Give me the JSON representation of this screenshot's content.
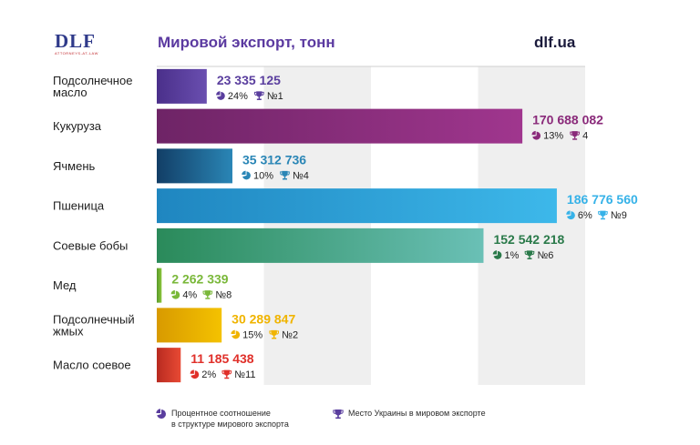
{
  "header": {
    "logo_text": "DLF",
    "logo_sub": "ATTORNEYS-AT-LAW",
    "title": "Мировой экспорт, тонн",
    "site": "dlf.ua"
  },
  "legend": {
    "share_label": "Процентное соотношение\nв структуре мирового экспорта",
    "rank_label": "Место Украины в мировом экспорте"
  },
  "chart_data": {
    "type": "bar",
    "orientation": "horizontal",
    "title": "Мировой экспорт, тонн",
    "xlim": [
      0,
      200000000
    ],
    "grid": "alternating-bands",
    "categories": [
      "Подсолнечное масло",
      "Кукуруза",
      "Ячмень",
      "Пшеница",
      "Соевые бобы",
      "Мед",
      "Подсолнечный жмых",
      "Масло соевое"
    ],
    "category_lines": [
      [
        "Подсолнечное",
        "масло"
      ],
      [
        "Кукуруза"
      ],
      [
        "Ячмень"
      ],
      [
        "Пшеница"
      ],
      [
        "Соевые бобы"
      ],
      [
        "Мед"
      ],
      [
        "Подсолнечный",
        "жмых"
      ],
      [
        "Масло соевое"
      ]
    ],
    "values": [
      23335125,
      170688082,
      35312736,
      186776560,
      152542218,
      2262339,
      30289847,
      11185438
    ],
    "value_labels": [
      "23 335 125",
      "170 688 082",
      "35 312 736",
      "186 776 560",
      "152 542 218",
      "2 262 339",
      "30 289 847",
      "11 185 438"
    ],
    "share_labels": [
      "24%",
      "13%",
      "10%",
      "6%",
      "1%",
      "4%",
      "15%",
      "2%"
    ],
    "rank_labels": [
      "№1",
      "4",
      "№4",
      "№9",
      "№6",
      "№8",
      "№2",
      "№11"
    ],
    "colors": [
      {
        "start": "#4a2f8a",
        "end": "#6a4fb0",
        "text": "#5a3e9e"
      },
      {
        "start": "#6e2466",
        "end": "#a0368e",
        "text": "#8a2a7a"
      },
      {
        "start": "#123e66",
        "end": "#2a86b6",
        "text": "#2a86b6"
      },
      {
        "start": "#1f86c0",
        "end": "#3db8ea",
        "text": "#36b2e8"
      },
      {
        "start": "#2a8a5a",
        "end": "#6ac0b6",
        "text": "#2a7a4a"
      },
      {
        "start": "#5a9a2a",
        "end": "#8ac63a",
        "text": "#7ab83a"
      },
      {
        "start": "#d89a00",
        "end": "#f4c200",
        "text": "#f0b400"
      },
      {
        "start": "#b82a20",
        "end": "#e84a34",
        "text": "#e0302a"
      }
    ]
  }
}
